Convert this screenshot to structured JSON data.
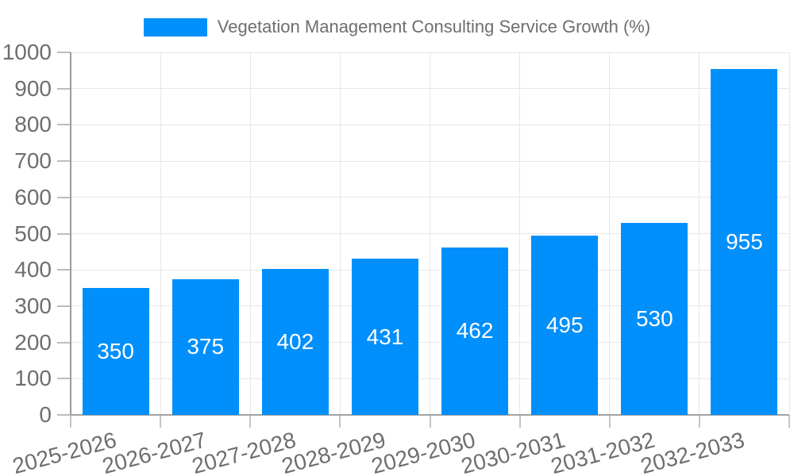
{
  "chart_data": {
    "type": "bar",
    "title": "Vegetation Management Consulting Service Growth (%)",
    "categories": [
      "2025-2026",
      "2026-2027",
      "2027-2028",
      "2028-2029",
      "2029-2030",
      "2030-2031",
      "2031-2032",
      "2032-2033"
    ],
    "values": [
      350,
      375,
      402,
      431,
      462,
      495,
      530,
      955
    ],
    "value_labels": [
      "350",
      "375",
      "402",
      "431",
      "462",
      "495",
      "530",
      "955"
    ],
    "xlabel": "",
    "ylabel": "",
    "ylim": [
      0,
      1000
    ],
    "ytick_step": 100,
    "ytick_labels": [
      "0",
      "100",
      "200",
      "300",
      "400",
      "500",
      "600",
      "700",
      "800",
      "900",
      "1000"
    ],
    "grid": true,
    "legend_position": "top",
    "x_label_rotation_deg": -15,
    "colors": {
      "bar": "#008FFB",
      "value_label": "#FFFFFF",
      "tick_label": "#6E6E6E",
      "gridline": "#E7E7E7",
      "axis_line": "#9C9C9C",
      "background": "#FFFFFF"
    }
  },
  "legend": {
    "label": "Vegetation Management Consulting Service Growth (%)",
    "swatch_color": "#008FFB"
  }
}
